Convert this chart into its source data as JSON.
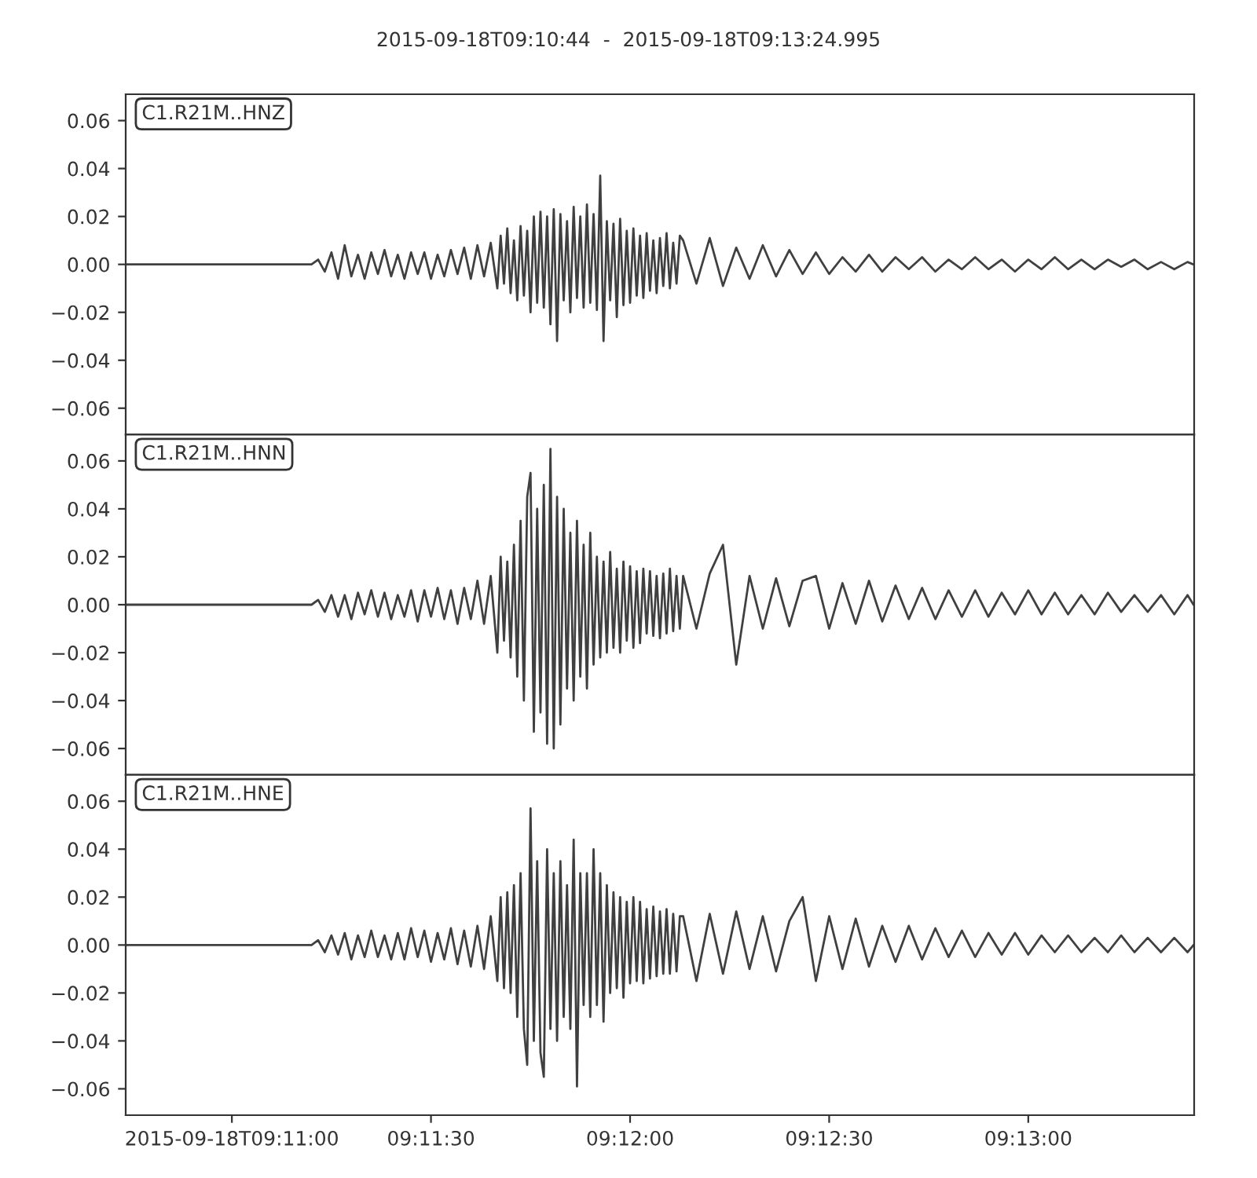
{
  "chart_data": [
    {
      "type": "line",
      "title": "2015-09-18T09:10:44  -  2015-09-18T09:13:24.995",
      "annotations": [
        "C1.R21M..HNZ"
      ],
      "tick_labels": "y",
      "grid": false,
      "xlim": [
        33044,
        33204.995
      ],
      "ylim": [
        -0.071,
        0.071
      ],
      "yticks": [
        {
          "value": -0.06,
          "label": "−0.06"
        },
        {
          "value": -0.04,
          "label": "−0.04"
        },
        {
          "value": -0.02,
          "label": "−0.02"
        },
        {
          "value": 0,
          "label": "0.00"
        },
        {
          "value": 0.02,
          "label": "0.02"
        },
        {
          "value": 0.04,
          "label": "0.04"
        },
        {
          "value": 0.06,
          "label": "0.06"
        }
      ],
      "series": [
        {
          "color": "#404040",
          "x": [
            33044,
            33058,
            33072,
            33073,
            33074,
            33075,
            33076,
            33077,
            33078,
            33079,
            33080,
            33081,
            33082,
            33083,
            33084,
            33085,
            33086,
            33087,
            33088,
            33089,
            33090,
            33091,
            33092,
            33093,
            33094,
            33095,
            33096,
            33097,
            33098,
            33099,
            33100,
            33100.5,
            33101,
            33101.5,
            33102,
            33102.5,
            33103,
            33103.5,
            33104,
            33104.5,
            33105,
            33105.5,
            33106,
            33106.5,
            33107,
            33107.5,
            33108,
            33108.5,
            33109,
            33109.5,
            33110,
            33110.5,
            33111,
            33111.5,
            33112,
            33112.5,
            33113,
            33113.5,
            33114,
            33114.5,
            33115,
            33115.5,
            33116,
            33116.5,
            33117,
            33117.5,
            33118,
            33118.5,
            33119,
            33119.5,
            33120,
            33120.5,
            33121,
            33121.5,
            33122,
            33122.5,
            33123,
            33123.5,
            33124,
            33124.5,
            33125,
            33125.5,
            33126,
            33126.5,
            33127,
            33127.5,
            33128,
            33130,
            33132,
            33134,
            33136,
            33138,
            33140,
            33142,
            33144,
            33146,
            33148,
            33150,
            33152,
            33154,
            33156,
            33158,
            33160,
            33162,
            33164,
            33166,
            33168,
            33170,
            33172,
            33174,
            33176,
            33178,
            33180,
            33182,
            33184,
            33186,
            33188,
            33190,
            33192,
            33194,
            33196,
            33198,
            33200,
            33202,
            33204,
            33204.9
          ],
          "values": [
            0,
            0,
            0,
            0.002,
            -0.003,
            0.005,
            -0.006,
            0.008,
            -0.005,
            0.004,
            -0.006,
            0.005,
            -0.004,
            0.006,
            -0.005,
            0.004,
            -0.006,
            0.005,
            -0.004,
            0.005,
            -0.006,
            0.004,
            -0.005,
            0.006,
            -0.004,
            0.007,
            -0.006,
            0.008,
            -0.005,
            0.009,
            -0.01,
            0.012,
            -0.008,
            0.015,
            -0.012,
            0.01,
            -0.015,
            0.016,
            -0.013,
            0.014,
            -0.02,
            0.02,
            -0.016,
            0.022,
            -0.018,
            0.02,
            -0.025,
            0.023,
            -0.032,
            0.021,
            -0.015,
            0.018,
            -0.02,
            0.024,
            -0.014,
            0.02,
            -0.018,
            0.025,
            -0.016,
            0.021,
            -0.019,
            0.037,
            -0.032,
            0.018,
            -0.015,
            0.017,
            -0.022,
            0.019,
            -0.017,
            0.014,
            -0.016,
            0.015,
            -0.013,
            0.012,
            -0.014,
            0.013,
            -0.011,
            0.01,
            -0.012,
            0.011,
            -0.009,
            0.013,
            -0.01,
            0.009,
            -0.008,
            0.012,
            0.01,
            -0.008,
            0.011,
            -0.009,
            0.007,
            -0.006,
            0.008,
            -0.005,
            0.006,
            -0.004,
            0.005,
            -0.004,
            0.003,
            -0.003,
            0.004,
            -0.003,
            0.003,
            -0.002,
            0.003,
            -0.003,
            0.002,
            -0.002,
            0.003,
            -0.002,
            0.002,
            -0.003,
            0.002,
            -0.002,
            0.003,
            -0.002,
            0.002,
            -0.002,
            0.002,
            -0.001,
            0.002,
            -0.002,
            0.001,
            -0.002,
            0.001,
            0
          ]
        }
      ]
    },
    {
      "type": "line",
      "annotations": [
        "C1.R21M..HNN"
      ],
      "tick_labels": "y",
      "grid": false,
      "xlim": [
        33044,
        33204.995
      ],
      "ylim": [
        -0.071,
        0.071
      ],
      "yticks": [
        {
          "value": -0.06,
          "label": "−0.06"
        },
        {
          "value": -0.04,
          "label": "−0.04"
        },
        {
          "value": -0.02,
          "label": "−0.02"
        },
        {
          "value": 0,
          "label": "0.00"
        },
        {
          "value": 0.02,
          "label": "0.02"
        },
        {
          "value": 0.04,
          "label": "0.04"
        },
        {
          "value": 0.06,
          "label": "0.06"
        }
      ],
      "series": [
        {
          "color": "#404040",
          "x": [
            33044,
            33058,
            33072,
            33073,
            33074,
            33075,
            33076,
            33077,
            33078,
            33079,
            33080,
            33081,
            33082,
            33083,
            33084,
            33085,
            33086,
            33087,
            33088,
            33089,
            33090,
            33091,
            33092,
            33093,
            33094,
            33095,
            33096,
            33097,
            33098,
            33099,
            33100,
            33100.5,
            33101,
            33101.5,
            33102,
            33102.5,
            33103,
            33103.5,
            33104,
            33104.5,
            33105,
            33105.5,
            33106,
            33106.5,
            33107,
            33107.5,
            33108,
            33108.5,
            33109,
            33109.5,
            33110,
            33110.5,
            33111,
            33111.5,
            33112,
            33112.5,
            33113,
            33113.5,
            33114,
            33114.5,
            33115,
            33115.5,
            33116,
            33116.5,
            33117,
            33117.5,
            33118,
            33118.5,
            33119,
            33119.5,
            33120,
            33120.5,
            33121,
            33121.5,
            33122,
            33122.5,
            33123,
            33123.5,
            33124,
            33124.5,
            33125,
            33125.5,
            33126,
            33126.5,
            33127,
            33127.5,
            33128,
            33130,
            33132,
            33134,
            33136,
            33138,
            33140,
            33142,
            33144,
            33146,
            33148,
            33150,
            33152,
            33154,
            33156,
            33158,
            33160,
            33162,
            33164,
            33166,
            33168,
            33170,
            33172,
            33174,
            33176,
            33178,
            33180,
            33182,
            33184,
            33186,
            33188,
            33190,
            33192,
            33194,
            33196,
            33198,
            33200,
            33202,
            33204,
            33204.9
          ],
          "values": [
            0,
            0,
            0,
            0.002,
            -0.003,
            0.004,
            -0.005,
            0.004,
            -0.006,
            0.005,
            -0.004,
            0.006,
            -0.005,
            0.005,
            -0.006,
            0.004,
            -0.005,
            0.006,
            -0.007,
            0.006,
            -0.005,
            0.007,
            -0.006,
            0.006,
            -0.008,
            0.007,
            -0.006,
            0.01,
            -0.008,
            0.012,
            -0.02,
            0.02,
            -0.015,
            0.018,
            -0.022,
            0.025,
            -0.03,
            0.035,
            -0.04,
            0.045,
            0.055,
            -0.053,
            0.04,
            -0.045,
            0.05,
            -0.058,
            0.065,
            -0.06,
            0.045,
            -0.05,
            0.04,
            -0.035,
            0.03,
            -0.04,
            0.035,
            -0.03,
            0.025,
            -0.035,
            0.03,
            -0.025,
            0.02,
            -0.022,
            0.018,
            -0.02,
            0.022,
            -0.018,
            0.015,
            -0.02,
            0.018,
            -0.015,
            0.016,
            -0.018,
            0.014,
            -0.016,
            0.015,
            -0.012,
            0.014,
            -0.013,
            0.012,
            -0.014,
            0.013,
            -0.012,
            0.015,
            -0.011,
            0.012,
            -0.01,
            0.012,
            -0.01,
            0.013,
            0.025,
            -0.025,
            0.012,
            -0.01,
            0.011,
            -0.009,
            0.01,
            0.012,
            -0.01,
            0.009,
            -0.008,
            0.01,
            -0.007,
            0.008,
            -0.006,
            0.007,
            -0.006,
            0.006,
            -0.005,
            0.006,
            -0.005,
            0.005,
            -0.004,
            0.006,
            -0.004,
            0.005,
            -0.004,
            0.004,
            -0.004,
            0.005,
            -0.003,
            0.004,
            -0.003,
            0.004,
            -0.004,
            0.004,
            0
          ]
        }
      ]
    },
    {
      "type": "line",
      "annotations": [
        "C1.R21M..HNE"
      ],
      "grid": false,
      "xlim": [
        33044,
        33204.995
      ],
      "xticks": [
        {
          "value": 33060,
          "label": "2015-09-18T09:11:00"
        },
        {
          "value": 33090,
          "label": "09:11:30"
        },
        {
          "value": 33120,
          "label": "09:12:00"
        },
        {
          "value": 33150,
          "label": "09:12:30"
        },
        {
          "value": 33180,
          "label": "09:13:00"
        }
      ],
      "ylim": [
        -0.071,
        0.071
      ],
      "yticks": [
        {
          "value": -0.06,
          "label": "−0.06"
        },
        {
          "value": -0.04,
          "label": "−0.04"
        },
        {
          "value": -0.02,
          "label": "−0.02"
        },
        {
          "value": 0,
          "label": "0.00"
        },
        {
          "value": 0.02,
          "label": "0.02"
        },
        {
          "value": 0.04,
          "label": "0.04"
        },
        {
          "value": 0.06,
          "label": "0.06"
        }
      ],
      "series": [
        {
          "color": "#404040",
          "x": [
            33044,
            33058,
            33072,
            33073,
            33074,
            33075,
            33076,
            33077,
            33078,
            33079,
            33080,
            33081,
            33082,
            33083,
            33084,
            33085,
            33086,
            33087,
            33088,
            33089,
            33090,
            33091,
            33092,
            33093,
            33094,
            33095,
            33096,
            33097,
            33098,
            33099,
            33100,
            33100.5,
            33101,
            33101.5,
            33102,
            33102.5,
            33103,
            33103.5,
            33104,
            33104.5,
            33105,
            33105.5,
            33106,
            33106.5,
            33107,
            33107.5,
            33108,
            33108.5,
            33109,
            33109.5,
            33110,
            33110.5,
            33111,
            33111.5,
            33112,
            33112.5,
            33113,
            33113.5,
            33114,
            33114.5,
            33115,
            33115.5,
            33116,
            33116.5,
            33117,
            33117.5,
            33118,
            33118.5,
            33119,
            33119.5,
            33120,
            33120.5,
            33121,
            33121.5,
            33122,
            33122.5,
            33123,
            33123.5,
            33124,
            33124.5,
            33125,
            33125.5,
            33126,
            33126.5,
            33127,
            33127.5,
            33128,
            33130,
            33132,
            33134,
            33136,
            33138,
            33140,
            33142,
            33144,
            33146,
            33148,
            33150,
            33152,
            33154,
            33156,
            33158,
            33160,
            33162,
            33164,
            33166,
            33168,
            33170,
            33172,
            33174,
            33176,
            33178,
            33180,
            33182,
            33184,
            33186,
            33188,
            33190,
            33192,
            33194,
            33196,
            33198,
            33200,
            33202,
            33204,
            33204.9
          ],
          "values": [
            0,
            0,
            0,
            0.002,
            -0.003,
            0.004,
            -0.004,
            0.005,
            -0.006,
            0.004,
            -0.005,
            0.006,
            -0.005,
            0.004,
            -0.006,
            0.005,
            -0.006,
            0.007,
            -0.005,
            0.006,
            -0.007,
            0.005,
            -0.006,
            0.007,
            -0.008,
            0.006,
            -0.009,
            0.008,
            -0.01,
            0.012,
            -0.015,
            0.02,
            -0.018,
            0.022,
            -0.02,
            0.025,
            -0.03,
            0.03,
            -0.035,
            -0.05,
            0.057,
            -0.04,
            0.035,
            -0.045,
            -0.055,
            0.04,
            -0.035,
            0.03,
            -0.04,
            0.035,
            -0.03,
            0.025,
            -0.035,
            0.044,
            -0.059,
            0.03,
            -0.025,
            0.03,
            -0.03,
            0.04,
            -0.025,
            0.03,
            -0.032,
            0.025,
            -0.02,
            0.022,
            -0.018,
            0.02,
            -0.022,
            0.018,
            -0.016,
            0.02,
            -0.015,
            0.018,
            -0.016,
            0.015,
            -0.014,
            0.016,
            -0.013,
            0.014,
            -0.012,
            0.015,
            -0.012,
            0.013,
            -0.011,
            0.012,
            0.012,
            -0.015,
            0.013,
            -0.012,
            0.014,
            -0.01,
            0.012,
            -0.011,
            0.01,
            0.02,
            -0.015,
            0.012,
            -0.01,
            0.011,
            -0.009,
            0.008,
            -0.007,
            0.008,
            -0.006,
            0.007,
            -0.005,
            0.006,
            -0.005,
            0.005,
            -0.004,
            0.005,
            -0.004,
            0.004,
            -0.003,
            0.004,
            -0.003,
            0.003,
            -0.003,
            0.004,
            -0.003,
            0.003,
            -0.003,
            0.003,
            -0.003,
            0
          ]
        }
      ]
    }
  ]
}
